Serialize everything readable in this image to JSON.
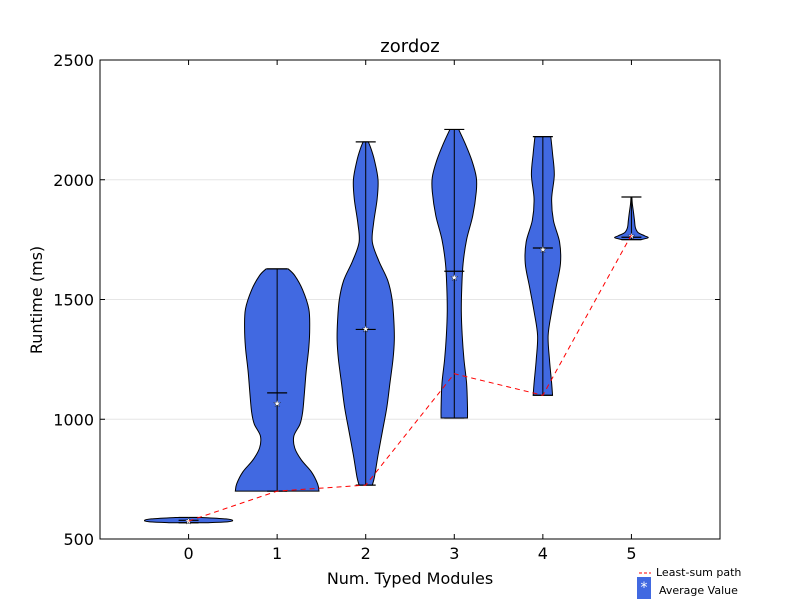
{
  "chart_data": {
    "type": "violin",
    "title": "zordoz",
    "xlabel": "Num. Typed Modules",
    "ylabel": "Runtime (ms)",
    "xlim": [
      -1,
      6
    ],
    "ylim": [
      500,
      2500
    ],
    "yticks": [
      500,
      1000,
      1500,
      2000,
      2500
    ],
    "categories": [
      "0",
      "1",
      "2",
      "3",
      "4",
      "5"
    ],
    "violin_color": "#4169E1",
    "path_color": "#FF0000",
    "violins": [
      {
        "x": 0,
        "min": 568,
        "max": 590,
        "median": 578,
        "mean": 579,
        "profile": [
          [
            568,
            0.45
          ],
          [
            572,
            0.9
          ],
          [
            578,
            1.0
          ],
          [
            584,
            0.85
          ],
          [
            590,
            0.3
          ]
        ]
      },
      {
        "x": 1,
        "min": 700,
        "max": 1628,
        "median": 1110,
        "mean": 1070,
        "profile": [
          [
            700,
            0.95
          ],
          [
            730,
            0.92
          ],
          [
            780,
            0.78
          ],
          [
            830,
            0.55
          ],
          [
            880,
            0.4
          ],
          [
            930,
            0.38
          ],
          [
            980,
            0.52
          ],
          [
            1030,
            0.58
          ],
          [
            1110,
            0.62
          ],
          [
            1200,
            0.66
          ],
          [
            1300,
            0.72
          ],
          [
            1380,
            0.74
          ],
          [
            1460,
            0.72
          ],
          [
            1540,
            0.58
          ],
          [
            1600,
            0.4
          ],
          [
            1628,
            0.25
          ]
        ]
      },
      {
        "x": 2,
        "min": 725,
        "max": 2158,
        "median": 1375,
        "mean": 1380,
        "profile": [
          [
            725,
            0.15
          ],
          [
            760,
            0.2
          ],
          [
            850,
            0.28
          ],
          [
            950,
            0.38
          ],
          [
            1050,
            0.48
          ],
          [
            1150,
            0.55
          ],
          [
            1250,
            0.62
          ],
          [
            1330,
            0.65
          ],
          [
            1410,
            0.64
          ],
          [
            1500,
            0.6
          ],
          [
            1580,
            0.5
          ],
          [
            1660,
            0.3
          ],
          [
            1740,
            0.15
          ],
          [
            1820,
            0.18
          ],
          [
            1920,
            0.26
          ],
          [
            2000,
            0.28
          ],
          [
            2080,
            0.2
          ],
          [
            2130,
            0.12
          ],
          [
            2158,
            0.06
          ]
        ]
      },
      {
        "x": 3,
        "min": 1005,
        "max": 2210,
        "median": 1618,
        "mean": 1595,
        "profile": [
          [
            1005,
            0.3
          ],
          [
            1050,
            0.3
          ],
          [
            1150,
            0.28
          ],
          [
            1250,
            0.22
          ],
          [
            1350,
            0.18
          ],
          [
            1450,
            0.16
          ],
          [
            1550,
            0.17
          ],
          [
            1650,
            0.2
          ],
          [
            1750,
            0.28
          ],
          [
            1850,
            0.42
          ],
          [
            1950,
            0.5
          ],
          [
            2010,
            0.5
          ],
          [
            2080,
            0.4
          ],
          [
            2150,
            0.25
          ],
          [
            2210,
            0.1
          ]
        ]
      },
      {
        "x": 4,
        "min": 1100,
        "max": 2180,
        "median": 1715,
        "mean": 1712,
        "profile": [
          [
            1100,
            0.22
          ],
          [
            1150,
            0.2
          ],
          [
            1250,
            0.15
          ],
          [
            1350,
            0.12
          ],
          [
            1450,
            0.2
          ],
          [
            1550,
            0.3
          ],
          [
            1650,
            0.4
          ],
          [
            1740,
            0.38
          ],
          [
            1830,
            0.24
          ],
          [
            1920,
            0.2
          ],
          [
            2020,
            0.26
          ],
          [
            2110,
            0.22
          ],
          [
            2180,
            0.18
          ]
        ]
      },
      {
        "x": 5,
        "min": 1750,
        "max": 1928,
        "median": 1760,
        "mean": 1770,
        "profile": [
          [
            1750,
            0.22
          ],
          [
            1758,
            0.38
          ],
          [
            1766,
            0.3
          ],
          [
            1780,
            0.15
          ],
          [
            1800,
            0.09
          ],
          [
            1830,
            0.07
          ],
          [
            1860,
            0.05
          ],
          [
            1900,
            0.02
          ],
          [
            1928,
            0.01
          ]
        ]
      }
    ],
    "least_sum_path": {
      "x": [
        0,
        1,
        2,
        3,
        4,
        5
      ],
      "y": [
        575,
        700,
        725,
        1190,
        1100,
        1770
      ]
    },
    "legend": {
      "placement": "below-right",
      "entries": [
        {
          "label": "Least-sum path",
          "kind": "dashed-line"
        },
        {
          "label": "Average Value",
          "kind": "patch-star"
        }
      ]
    }
  }
}
